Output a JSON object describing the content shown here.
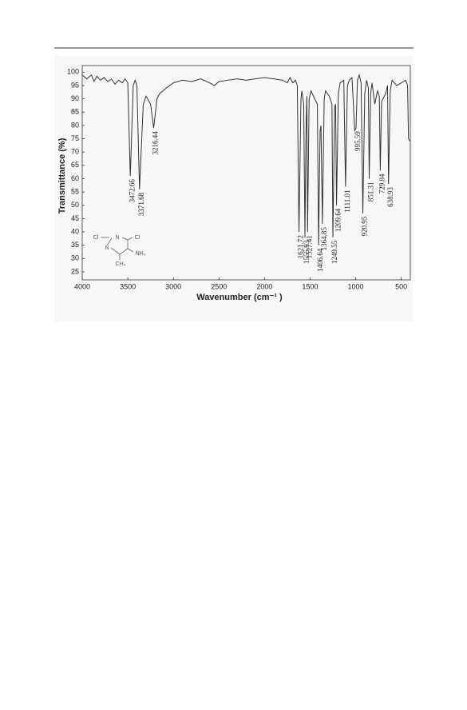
{
  "chart_data": {
    "type": "line",
    "xlabel": "Wavenumber (cm⁻¹ )",
    "ylabel": "Transmittance (%)",
    "x": [
      4000,
      3950,
      3900,
      3870,
      3840,
      3800,
      3760,
      3720,
      3680,
      3640,
      3600,
      3560,
      3530,
      3500,
      3472.66,
      3440,
      3420,
      3400,
      3371.68,
      3330,
      3300,
      3250,
      3216.44,
      3180,
      3150,
      3080,
      3000,
      2900,
      2800,
      2700,
      2600,
      2550,
      2500,
      2400,
      2300,
      2200,
      2100,
      2000,
      1900,
      1800,
      1750,
      1720,
      1690,
      1660,
      1640,
      1621.72,
      1600,
      1590,
      1570,
      1555.93,
      1545,
      1535,
      1527.41,
      1510,
      1490,
      1450,
      1420,
      1406.64,
      1390,
      1380,
      1364.85,
      1345,
      1330,
      1290,
      1260,
      1249.55,
      1230,
      1220,
      1209.64,
      1190,
      1170,
      1130,
      1111.01,
      1090,
      1070,
      1040,
      1010,
      995.59,
      980,
      960,
      940,
      920.95,
      900,
      880,
      860,
      851.31,
      835,
      820,
      790,
      760,
      740,
      729.84,
      715,
      700,
      670,
      650,
      638.93,
      620,
      600,
      550,
      500,
      450,
      430,
      420,
      400
    ],
    "values": [
      99,
      97.5,
      99,
      96.5,
      98.5,
      97,
      98,
      96.5,
      97.5,
      95.5,
      97,
      96,
      97.5,
      96,
      61,
      95,
      97,
      95,
      56,
      88,
      91,
      88,
      79,
      90,
      92,
      94,
      96,
      97,
      96.5,
      97.5,
      96,
      95,
      96.5,
      97,
      97.5,
      97,
      97.5,
      98,
      97.5,
      97,
      96,
      98,
      96,
      97,
      95,
      40,
      90,
      93,
      88,
      38,
      78,
      91,
      40,
      90,
      93,
      90,
      88,
      35,
      78,
      80,
      43,
      90,
      93,
      91,
      88,
      38,
      87,
      88,
      50,
      92,
      96,
      97,
      57,
      95,
      97,
      98,
      78,
      79,
      97,
      99,
      96,
      47,
      92,
      97,
      94,
      60,
      92,
      96,
      88,
      93,
      91,
      63,
      89,
      90,
      92,
      95,
      58,
      93,
      97,
      95,
      96,
      97,
      95,
      75,
      74
    ],
    "color": "#333333",
    "xlim": [
      4000,
      400
    ],
    "ylim": [
      22,
      102.5
    ],
    "xticks": [
      4000,
      3500,
      3000,
      2500,
      2000,
      1500,
      1000,
      500
    ],
    "yticks": [
      25,
      30,
      35,
      40,
      45,
      50,
      55,
      60,
      65,
      70,
      75,
      80,
      85,
      90,
      95,
      100
    ],
    "annotations": [
      3472.66,
      3371.68,
      3216.44,
      1621.72,
      1555.93,
      1527.41,
      1406.64,
      1364.85,
      1249.55,
      1209.64,
      1111.01,
      995.59,
      920.95,
      851.31,
      729.84,
      638.93
    ],
    "inset": {
      "atoms": [
        "Cl",
        "N",
        "Cl",
        "N",
        "NH₂",
        "CH₃"
      ]
    }
  }
}
